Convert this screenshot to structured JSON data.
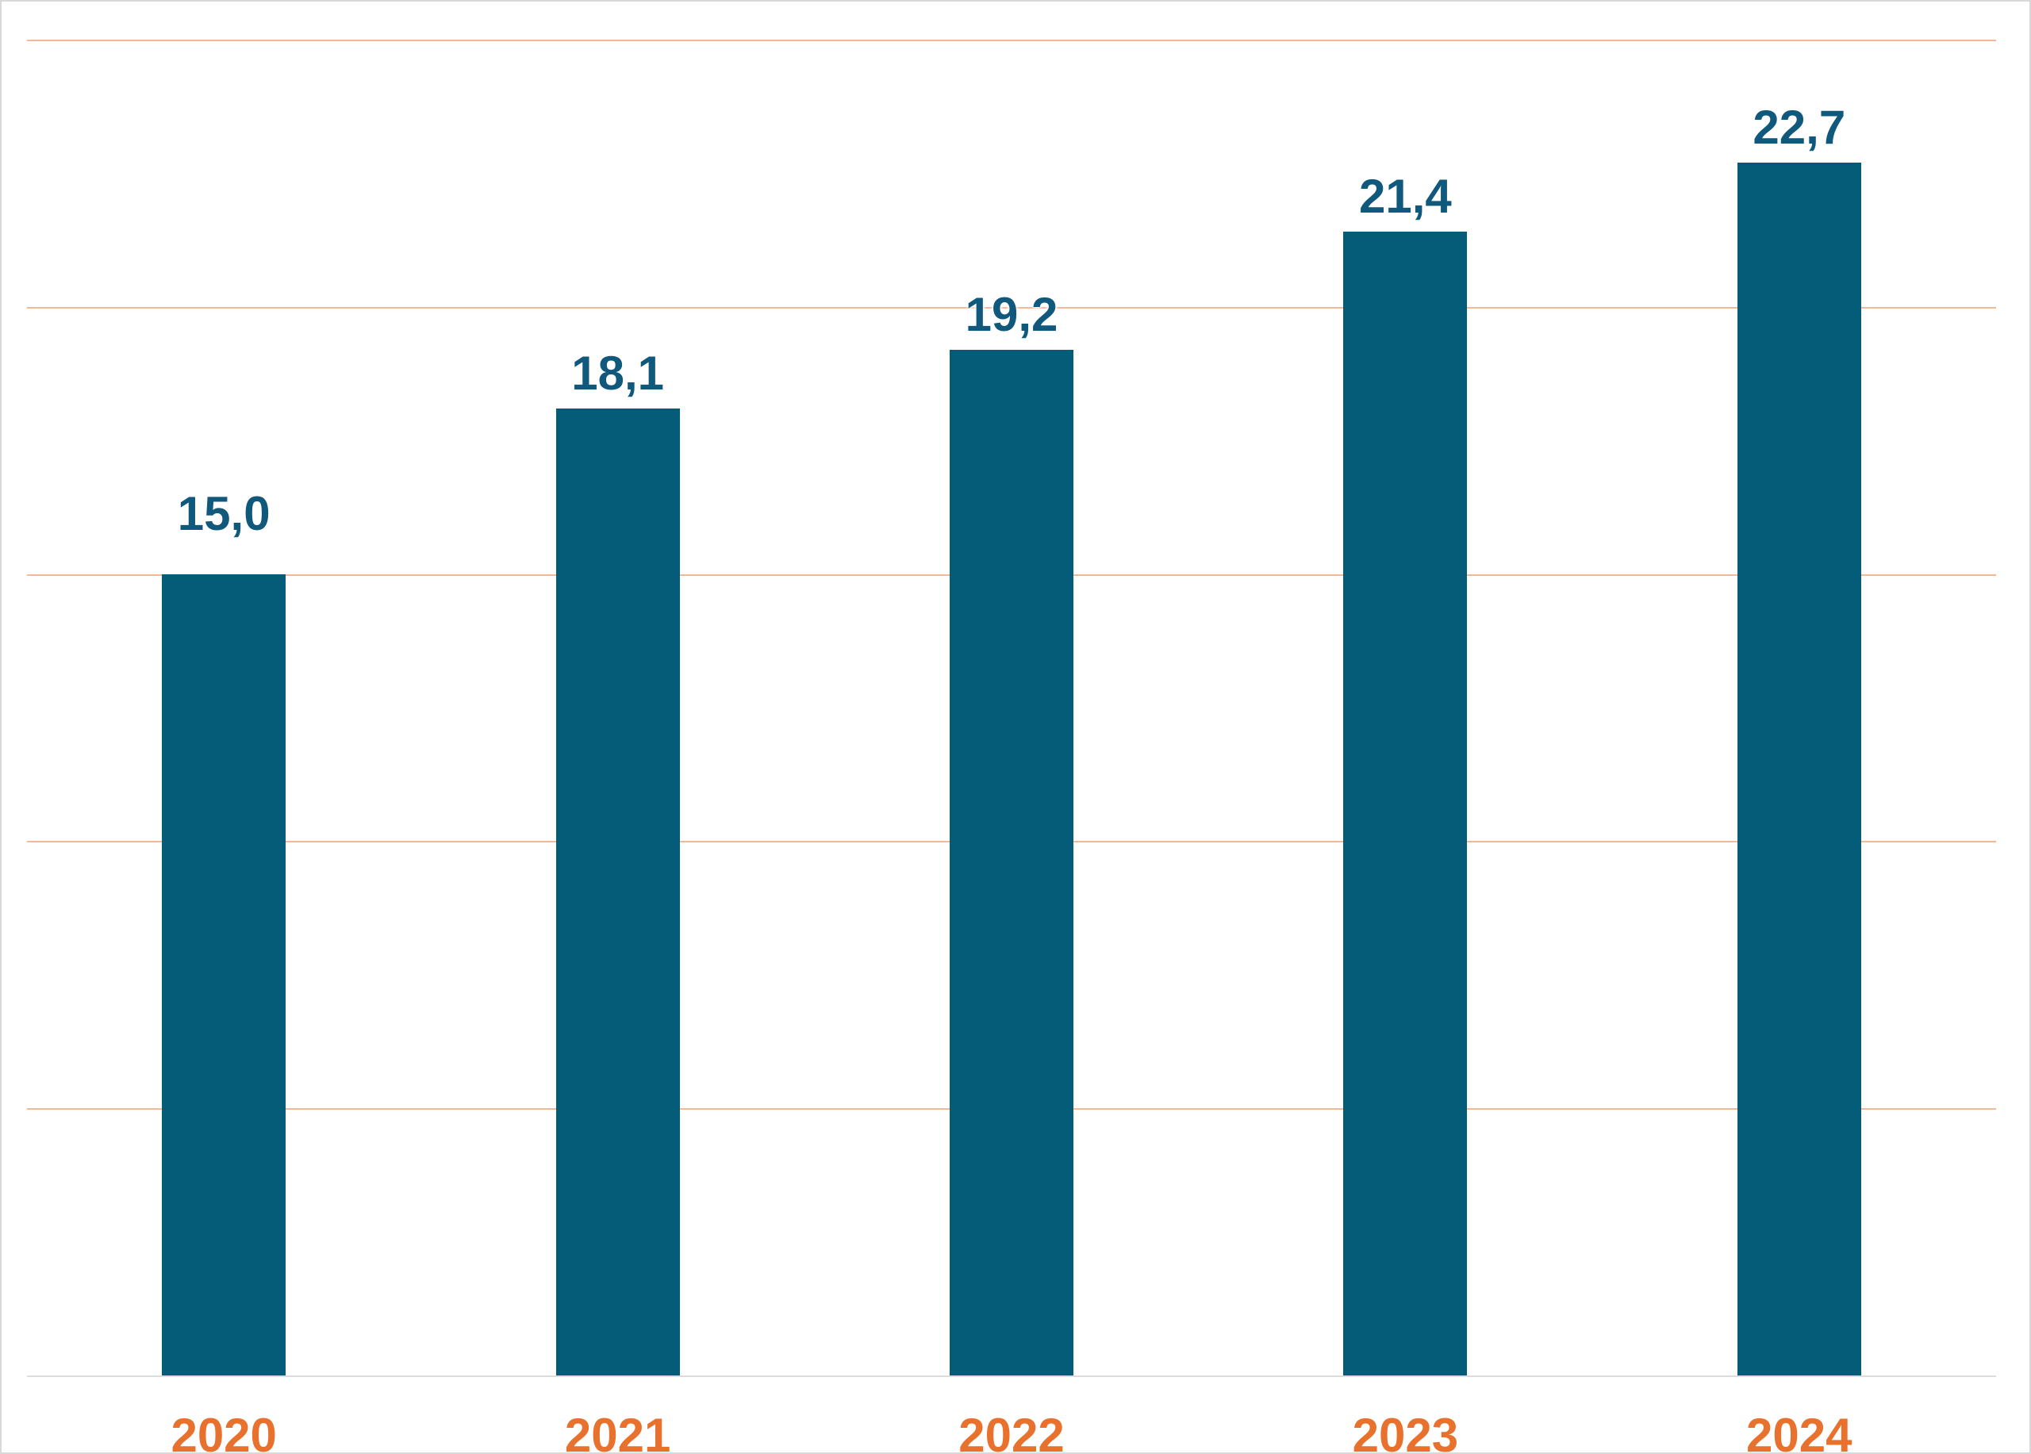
{
  "chart_data": {
    "type": "bar",
    "title": "",
    "xlabel": "",
    "ylabel": "",
    "categories": [
      "2020",
      "2021",
      "2022",
      "2023",
      "2024"
    ],
    "values": [
      15.0,
      18.1,
      19.2,
      21.4,
      22.7
    ],
    "value_labels": [
      "15,0",
      "18,1",
      "19,2",
      "21,4",
      "22,7"
    ],
    "decimal_separator": ",",
    "ylim": [
      0,
      25
    ],
    "gridline_step": 5,
    "grid": true,
    "legend": "none",
    "y_tick_labels_shown": false,
    "colors": {
      "bar": "#045c79",
      "value_label": "#10587c",
      "category_label": "#e7712d",
      "gridline": "#f5b896",
      "baseline": "#dcdcdc",
      "background": "#ffffff",
      "frame_border": "#d9d9d9"
    }
  }
}
